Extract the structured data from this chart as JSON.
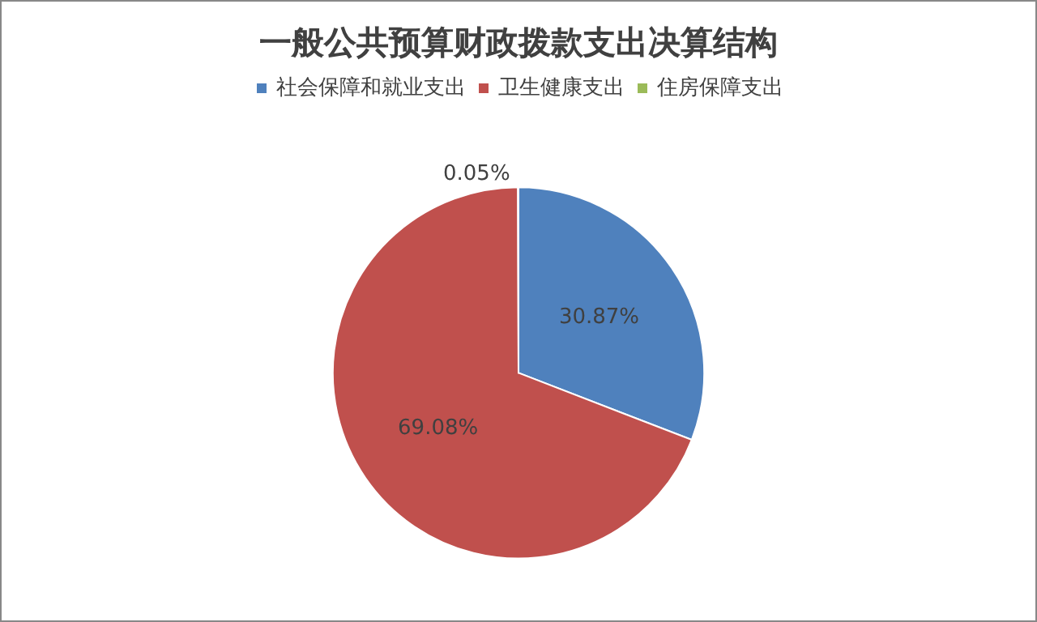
{
  "chart_data": {
    "type": "pie",
    "title": "一般公共预算财政拨款支出决算结构",
    "categories": [
      "社会保障和就业支出",
      "卫生健康支出",
      "住房保障支出"
    ],
    "values": [
      30.87,
      69.08,
      0.05
    ],
    "colors": [
      "#4f81bd",
      "#c0504d",
      "#9bbb59"
    ],
    "value_labels": [
      "30.87%",
      "69.08%",
      "0.05%"
    ],
    "legend": "top"
  }
}
